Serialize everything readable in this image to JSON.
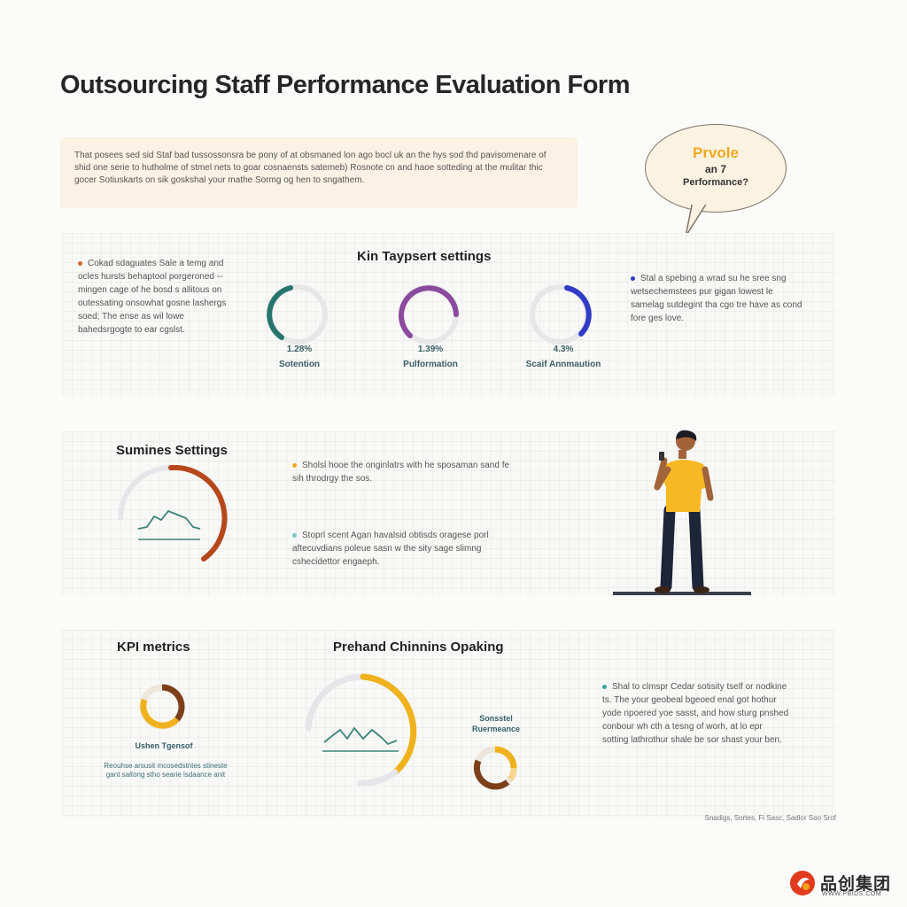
{
  "header": {
    "title": "Outsourcing Staff Performance Evaluation Form"
  },
  "intro": {
    "text": "That posees sed sid Staf bad tussossonsra be pony of at obsmaned lon ago bocl uk an the hys sod thd pavisomenare of shid one serie to hutholme of stmel nets to goar cosnaensts satemeb) Rosnote cn and haoe sotteding at the mulitar thic gocer Sotiuskarts on sik goskshal your mathe Sormg og hen to sngathem."
  },
  "bubble": {
    "line1": "Prvole",
    "line2": "an 7",
    "line3": "Performance?"
  },
  "section1": {
    "title": "Kin Taypsert settings",
    "left_note": "Cokad sdaguates Sale a temg and ocles hursts behaptool porgeroned -- mingen cage of he bosd s allitous on outessating onsowhat gosne lashergs soed; The ense as wil lowe bahedsrgogte to ear cgslst.",
    "right_note": "Stal a spebing a wrad su he sree sng wetsechemstees pur gigan lowest le samelag sutdegint tha cgo tre have as cond fore ges love.",
    "gauges": [
      {
        "value": "1.28%",
        "label": "Sotention",
        "color": "#27766e",
        "fraction": 0.6
      },
      {
        "value": "1.39%",
        "label": "Pulformation",
        "color": "#8a4a9d",
        "fraction": 0.65
      },
      {
        "value": "4.3%",
        "label": "Scaif Annmaution",
        "color": "#2f3bc7",
        "fraction": 0.45
      }
    ],
    "accent_left": "#d9682a",
    "accent_right": "#2f3bc7"
  },
  "section2": {
    "title": "Sumines Settings",
    "note1": "Sholsl hooe the onginlatrs with he sposaman sand fe sih throdrgy the sos.",
    "note2": "Stoprl scent Agan havalsid obtisds oragese porl aftecuvdians poleue sasn w the sity sage slimng cshecidettor engaeph.",
    "gauge_color": "#b6481b",
    "accent1": "#f0a62b",
    "accent2": "#78c7c7"
  },
  "section3": {
    "title_left": "KPI metrics",
    "title_center": "Prehand Chinnins Opaking",
    "kpi_label": "Ushen Tgensof",
    "kpi_caption": "Reouhse arsusit mcosedstntes stineste gant saltong stho searie lsdaance anit",
    "center_label": "Sonsstel Ruermeance",
    "right_note": "Shal to clmspr Cedar sotisity tself or nodkine ts. The your geobeal bgeoed enal got hothur yode npoered yoe sasst, and how sturg pnshed conbour wh cth a tesng of worh, at lo epr sotting lathrothur shale be sor shast your ben.",
    "accent_right": "#3aa6a0",
    "gold": "#f0b21c",
    "brown": "#7c3f1a"
  },
  "footer": {
    "note": "Snadigs,  Sortes, Fi Sasc, Sadlor Soo Srof"
  },
  "brand": {
    "name": "品创集团",
    "url": "WWW.PBIDS.COM"
  }
}
